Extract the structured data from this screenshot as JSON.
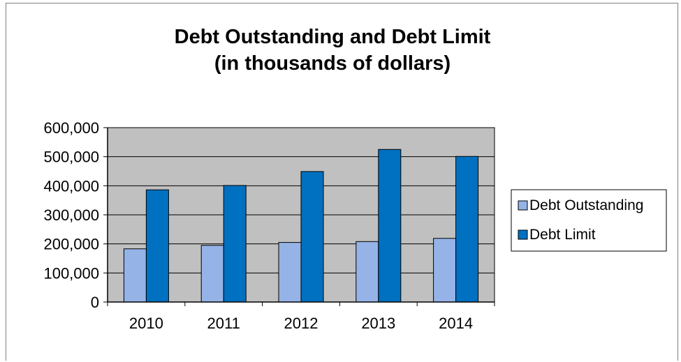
{
  "chart_data": {
    "type": "bar",
    "title": "Debt Outstanding and Debt Limit",
    "subtitle": "(in thousands of dollars)",
    "xlabel": "",
    "ylabel": "",
    "categories": [
      "2010",
      "2011",
      "2012",
      "2013",
      "2014"
    ],
    "series": [
      {
        "name": "Debt Outstanding",
        "values": [
          183000,
          195000,
          205000,
          208000,
          219000
        ],
        "color": "#95b3e6"
      },
      {
        "name": "Debt Limit",
        "values": [
          386000,
          401000,
          449000,
          525000,
          501000
        ],
        "color": "#0070c0"
      }
    ],
    "ylim": [
      0,
      600000
    ],
    "yticks": [
      0,
      100000,
      200000,
      300000,
      400000,
      500000,
      600000
    ],
    "ytick_labels": [
      "0",
      "100,000",
      "200,000",
      "300,000",
      "400,000",
      "500,000",
      "600,000"
    ],
    "grid": true,
    "plot_background": "#c0c0c0",
    "legend_position": "right"
  }
}
